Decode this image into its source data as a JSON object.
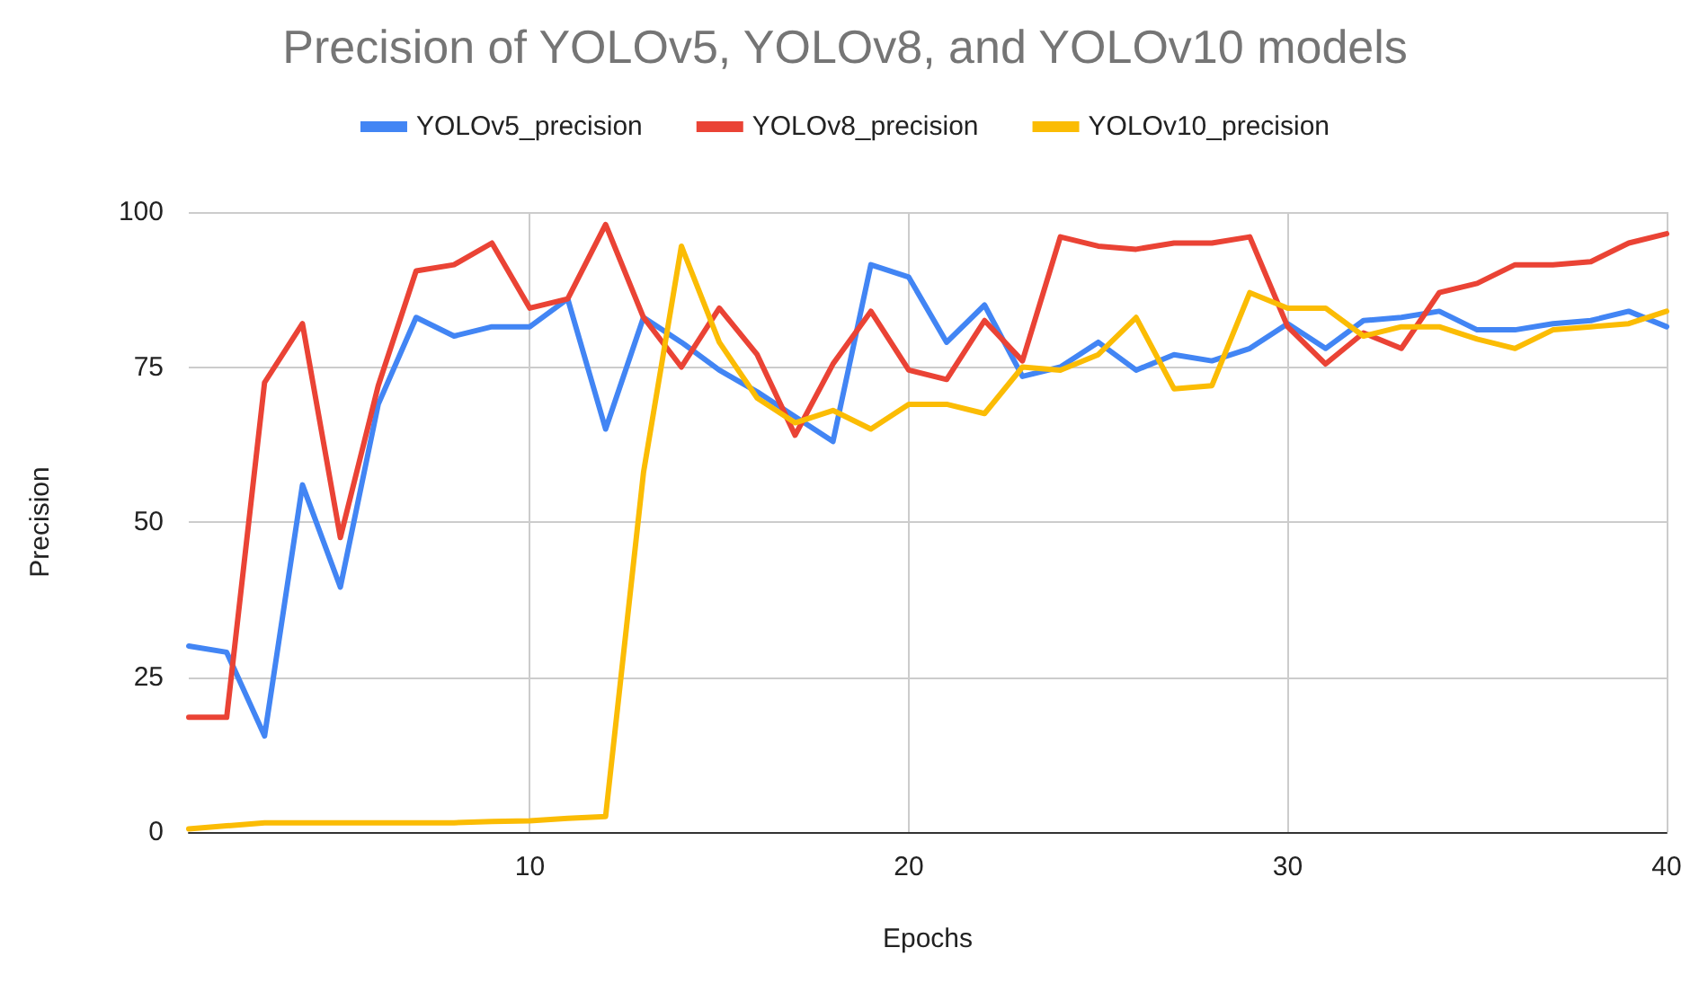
{
  "chart_data": {
    "type": "line",
    "title": "Precision of YOLOv5, YOLOv8, and YOLOv10 models",
    "xlabel": "Epochs",
    "ylabel": "Precision",
    "x": [
      1,
      2,
      3,
      4,
      5,
      6,
      7,
      8,
      9,
      10,
      11,
      12,
      13,
      14,
      15,
      16,
      17,
      18,
      19,
      20,
      21,
      22,
      23,
      24,
      25,
      26,
      27,
      28,
      29,
      30,
      31,
      32,
      33,
      34,
      35,
      36,
      37,
      38,
      39,
      40
    ],
    "series": [
      {
        "name": "YOLOv5_precision",
        "color": "#4285f4",
        "values": [
          30,
          29,
          15.5,
          56,
          39.5,
          69,
          83,
          80,
          81.5,
          81.5,
          86,
          65,
          83,
          79,
          74.5,
          71,
          67,
          63,
          91.5,
          89.5,
          79,
          85,
          73.5,
          75,
          79,
          74.5,
          77,
          76,
          78,
          82,
          78,
          82.5,
          83,
          84,
          81,
          81,
          82,
          82.5,
          84,
          81.5
        ]
      },
      {
        "name": "YOLOv8_precision",
        "color": "#ea4335",
        "values": [
          18.5,
          18.5,
          72.5,
          82,
          47.5,
          72,
          90.5,
          91.5,
          95,
          84.5,
          86,
          98,
          83,
          75,
          84.5,
          77,
          64,
          75.5,
          84,
          74.5,
          73,
          82.5,
          76,
          96,
          94.5,
          94,
          95,
          95,
          96,
          81.5,
          75.5,
          80.5,
          78,
          87,
          88.5,
          91.5,
          91.5,
          92,
          95,
          96.5
        ]
      },
      {
        "name": "YOLOv10_precision",
        "color": "#fbbc04",
        "values": [
          0.5,
          1,
          1.5,
          1.5,
          1.5,
          1.5,
          1.5,
          1.5,
          1.7,
          1.8,
          2.2,
          2.5,
          58,
          94.5,
          79,
          70,
          66,
          68,
          65,
          69,
          69,
          67.5,
          75,
          74.5,
          77,
          83,
          71.5,
          72,
          87,
          84.5,
          84.5,
          80,
          81.5,
          81.5,
          79.5,
          78,
          81,
          81.5,
          82,
          84
        ]
      }
    ],
    "xlim": [
      1,
      40
    ],
    "xticks": [
      10,
      20,
      30,
      40
    ],
    "ylim": [
      0,
      100
    ],
    "yticks": [
      0,
      25,
      50,
      75,
      100
    ],
    "grid": true,
    "legend": "top",
    "marker": "none",
    "line_style": "solid"
  }
}
